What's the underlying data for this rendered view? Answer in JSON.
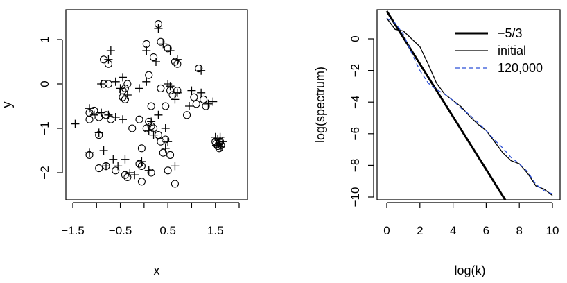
{
  "chart_data": [
    {
      "type": "scatter",
      "title": "",
      "xlabel": "x",
      "ylabel": "y",
      "xlim": [
        -1.7,
        2.0
      ],
      "ylim": [
        -2.55,
        1.65
      ],
      "xticks": [
        "−1.5",
        "−0.5",
        "0.5",
        "1.5"
      ],
      "xtick_values": [
        -1.5,
        -1.0,
        -0.5,
        0.0,
        0.5,
        1.0,
        1.5,
        2.0
      ],
      "xtick_label_values": [
        -1.5,
        -0.5,
        0.5,
        1.5
      ],
      "yticks": [
        "−2",
        "−1",
        "0",
        "1"
      ],
      "ytick_values": [
        -2,
        -1,
        0,
        1
      ],
      "series": [
        {
          "marker": "circle",
          "points": [
            [
              0.3,
              1.35
            ],
            [
              0.35,
              0.95
            ],
            [
              0.05,
              0.9
            ],
            [
              0.5,
              0.8
            ],
            [
              -0.85,
              0.55
            ],
            [
              -0.75,
              0.45
            ],
            [
              0.2,
              0.6
            ],
            [
              0.7,
              0.45
            ],
            [
              0.65,
              0.5
            ],
            [
              1.15,
              0.35
            ],
            [
              -0.85,
              0.0
            ],
            [
              -0.75,
              0.0
            ],
            [
              -0.35,
              0.0
            ],
            [
              -0.4,
              -0.1
            ],
            [
              -0.45,
              -0.15
            ],
            [
              -0.45,
              -0.3
            ],
            [
              -0.4,
              -0.35
            ],
            [
              0.1,
              0.2
            ],
            [
              0.35,
              -0.1
            ],
            [
              0.55,
              -0.15
            ],
            [
              0.6,
              -0.25
            ],
            [
              0.7,
              -0.15
            ],
            [
              1.05,
              -0.3
            ],
            [
              1.1,
              -0.45
            ],
            [
              1.25,
              -0.35
            ],
            [
              1.3,
              -0.5
            ],
            [
              0.15,
              -0.5
            ],
            [
              0.45,
              -0.5
            ],
            [
              0.9,
              -0.7
            ],
            [
              -1.15,
              -0.65
            ],
            [
              -1.05,
              -0.6
            ],
            [
              -1.15,
              -0.8
            ],
            [
              -0.95,
              -0.75
            ],
            [
              -0.8,
              -0.7
            ],
            [
              -0.7,
              -0.8
            ],
            [
              0.1,
              -0.85
            ],
            [
              0.15,
              -0.95
            ],
            [
              0.2,
              -1.0
            ],
            [
              0.05,
              -1.0
            ],
            [
              -0.1,
              -0.8
            ],
            [
              -0.25,
              -1.0
            ],
            [
              0.3,
              -1.15
            ],
            [
              0.35,
              -1.3
            ],
            [
              0.45,
              -1.25
            ],
            [
              0.4,
              -1.55
            ],
            [
              0.55,
              -1.6
            ],
            [
              -0.05,
              -1.45
            ],
            [
              -0.95,
              -1.15
            ],
            [
              -1.15,
              -1.6
            ],
            [
              -0.95,
              -1.9
            ],
            [
              -0.8,
              -1.85
            ],
            [
              -0.6,
              -1.95
            ],
            [
              -0.4,
              -2.05
            ],
            [
              -0.35,
              -2.1
            ],
            [
              -0.1,
              -1.8
            ],
            [
              -0.05,
              -1.85
            ],
            [
              -0.05,
              -2.2
            ],
            [
              0.15,
              -2.0
            ],
            [
              0.5,
              -1.95
            ],
            [
              0.65,
              -2.25
            ],
            [
              1.5,
              -1.3
            ],
            [
              1.52,
              -1.35
            ],
            [
              1.55,
              -1.4
            ],
            [
              1.6,
              -1.3
            ],
            [
              1.58,
              -1.45
            ],
            [
              1.62,
              -1.38
            ]
          ]
        },
        {
          "marker": "plus",
          "points": [
            [
              0.3,
              1.25
            ],
            [
              0.4,
              0.9
            ],
            [
              0.05,
              0.75
            ],
            [
              0.55,
              0.75
            ],
            [
              -0.7,
              0.75
            ],
            [
              -0.75,
              0.55
            ],
            [
              0.25,
              0.5
            ],
            [
              0.7,
              0.55
            ],
            [
              1.2,
              0.3
            ],
            [
              -0.9,
              0.0
            ],
            [
              -0.6,
              0.05
            ],
            [
              -0.45,
              0.15
            ],
            [
              -0.5,
              -0.1
            ],
            [
              -0.35,
              -0.25
            ],
            [
              -0.1,
              -0.1
            ],
            [
              0.05,
              0.05
            ],
            [
              0.5,
              0.0
            ],
            [
              0.55,
              -0.05
            ],
            [
              0.7,
              -0.2
            ],
            [
              0.65,
              -0.35
            ],
            [
              1.0,
              -0.15
            ],
            [
              1.2,
              -0.2
            ],
            [
              1.35,
              -0.45
            ],
            [
              1.45,
              -0.4
            ],
            [
              0.95,
              -0.5
            ],
            [
              0.3,
              -0.7
            ],
            [
              -1.15,
              -0.55
            ],
            [
              -1.05,
              -0.7
            ],
            [
              -0.9,
              -0.65
            ],
            [
              -0.75,
              -0.7
            ],
            [
              -0.6,
              -0.75
            ],
            [
              -0.45,
              -0.8
            ],
            [
              0.15,
              -0.85
            ],
            [
              0.1,
              -1.05
            ],
            [
              0.2,
              -1.15
            ],
            [
              0.45,
              -1.0
            ],
            [
              0.5,
              -1.3
            ],
            [
              0.45,
              -1.45
            ],
            [
              -0.95,
              -1.1
            ],
            [
              -1.15,
              -1.55
            ],
            [
              -0.85,
              -1.5
            ],
            [
              -0.8,
              -1.85
            ],
            [
              -0.65,
              -1.7
            ],
            [
              -0.55,
              -1.85
            ],
            [
              -0.4,
              -1.7
            ],
            [
              -0.3,
              -2.0
            ],
            [
              -0.2,
              -2.05
            ],
            [
              -0.05,
              -1.75
            ],
            [
              0.1,
              -1.95
            ],
            [
              0.65,
              -1.85
            ],
            [
              -1.45,
              -0.9
            ],
            [
              1.5,
              -1.2
            ],
            [
              1.55,
              -1.25
            ],
            [
              1.6,
              -1.2
            ],
            [
              1.65,
              -1.3
            ],
            [
              1.52,
              -1.38
            ],
            [
              1.58,
              -1.33
            ],
            [
              1.62,
              -1.42
            ]
          ]
        }
      ]
    },
    {
      "type": "line",
      "title": "",
      "xlabel": "log(k)",
      "ylabel": "log(spectrum)",
      "xlim": [
        -0.3,
        10.3
      ],
      "ylim": [
        -10.6,
        1.9
      ],
      "xticks": [
        "0",
        "2",
        "4",
        "6",
        "8",
        "10"
      ],
      "xtick_values": [
        0,
        2,
        4,
        6,
        8,
        10
      ],
      "yticks": [
        "−10",
        "−8",
        "−6",
        "−4",
        "−2",
        "0"
      ],
      "ytick_values": [
        -10,
        -8,
        -6,
        -4,
        -2,
        0
      ],
      "legend_position": "top-right",
      "legend": [
        "−5/3",
        "initial",
        "120,000"
      ],
      "series": [
        {
          "name": "−5/3",
          "style": "thick-solid",
          "x": [
            0,
            7.4
          ],
          "y": [
            1.75,
            -10.6
          ]
        },
        {
          "name": "initial",
          "style": "thin-solid",
          "x": [
            0,
            0.5,
            1.0,
            1.5,
            2.0,
            2.5,
            3.0,
            3.5,
            4.0,
            4.5,
            5.0,
            5.5,
            6.0,
            6.5,
            7.0,
            7.5,
            8.0,
            8.5,
            9.0,
            9.5,
            10.0
          ],
          "y": [
            1.3,
            0.6,
            0.5,
            0.0,
            -0.5,
            -1.6,
            -2.8,
            -3.5,
            -3.9,
            -4.3,
            -4.9,
            -5.4,
            -5.8,
            -6.5,
            -7.2,
            -7.7,
            -7.9,
            -8.5,
            -9.3,
            -9.5,
            -9.9
          ]
        },
        {
          "name": "120,000",
          "style": "dashed",
          "x": [
            0,
            0.5,
            1.0,
            1.5,
            2.0,
            2.5,
            3.0,
            3.5,
            4.0,
            4.5,
            5.0,
            5.5,
            6.0,
            6.5,
            7.0,
            7.5,
            8.0,
            8.5,
            9.0,
            9.5,
            10.0
          ],
          "y": [
            1.3,
            1.0,
            0.3,
            -0.9,
            -2.0,
            -2.8,
            -3.2,
            -3.5,
            -3.9,
            -4.4,
            -4.8,
            -5.3,
            -5.8,
            -6.4,
            -6.9,
            -7.5,
            -7.9,
            -8.4,
            -9.2,
            -9.6,
            -9.8
          ]
        }
      ],
      "colors": {
        "dashed": "#2b4fd6",
        "solid": "#000000"
      }
    }
  ]
}
